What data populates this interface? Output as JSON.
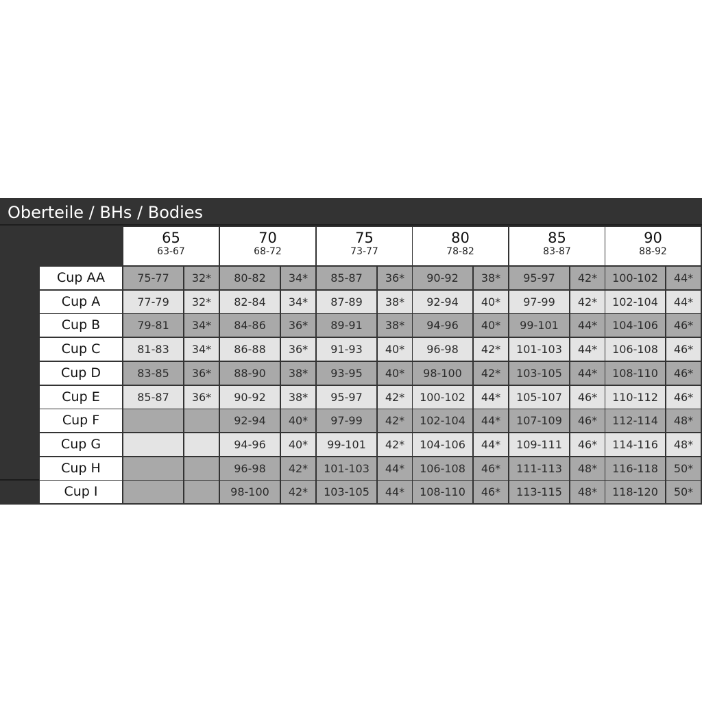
{
  "title": "Oberteile / BHs / Bodies",
  "colors": {
    "frame": "#333333",
    "row_dark": "#a9a9a9",
    "row_light": "#e4e4e4"
  },
  "bands": [
    {
      "band": "65",
      "range": "63-67"
    },
    {
      "band": "70",
      "range": "68-72"
    },
    {
      "band": "75",
      "range": "73-77"
    },
    {
      "band": "80",
      "range": "78-82"
    },
    {
      "band": "85",
      "range": "83-87"
    },
    {
      "band": "90",
      "range": "88-92"
    }
  ],
  "rows": [
    {
      "cup": "Cup AA",
      "shade": "dark",
      "cells": [
        [
          "75-77",
          "32*"
        ],
        [
          "80-82",
          "34*"
        ],
        [
          "85-87",
          "36*"
        ],
        [
          "90-92",
          "38*"
        ],
        [
          "95-97",
          "42*"
        ],
        [
          "100-102",
          "44*"
        ]
      ]
    },
    {
      "cup": "Cup A",
      "shade": "light",
      "cells": [
        [
          "77-79",
          "32*"
        ],
        [
          "82-84",
          "34*"
        ],
        [
          "87-89",
          "38*"
        ],
        [
          "92-94",
          "40*"
        ],
        [
          "97-99",
          "42*"
        ],
        [
          "102-104",
          "44*"
        ]
      ]
    },
    {
      "cup": "Cup B",
      "shade": "dark",
      "cells": [
        [
          "79-81",
          "34*"
        ],
        [
          "84-86",
          "36*"
        ],
        [
          "89-91",
          "38*"
        ],
        [
          "94-96",
          "40*"
        ],
        [
          "99-101",
          "44*"
        ],
        [
          "104-106",
          "46*"
        ]
      ]
    },
    {
      "cup": "Cup C",
      "shade": "light",
      "cells": [
        [
          "81-83",
          "34*"
        ],
        [
          "86-88",
          "36*"
        ],
        [
          "91-93",
          "40*"
        ],
        [
          "96-98",
          "42*"
        ],
        [
          "101-103",
          "44*"
        ],
        [
          "106-108",
          "46*"
        ]
      ]
    },
    {
      "cup": "Cup D",
      "shade": "dark",
      "cells": [
        [
          "83-85",
          "36*"
        ],
        [
          "88-90",
          "38*"
        ],
        [
          "93-95",
          "40*"
        ],
        [
          "98-100",
          "42*"
        ],
        [
          "103-105",
          "44*"
        ],
        [
          "108-110",
          "46*"
        ]
      ]
    },
    {
      "cup": "Cup E",
      "shade": "light",
      "cells": [
        [
          "85-87",
          "36*"
        ],
        [
          "90-92",
          "38*"
        ],
        [
          "95-97",
          "42*"
        ],
        [
          "100-102",
          "44*"
        ],
        [
          "105-107",
          "46*"
        ],
        [
          "110-112",
          "46*"
        ]
      ]
    },
    {
      "cup": "Cup F",
      "shade": "dark",
      "cells": [
        [
          "",
          ""
        ],
        [
          "92-94",
          "40*"
        ],
        [
          "97-99",
          "42*"
        ],
        [
          "102-104",
          "44*"
        ],
        [
          "107-109",
          "46*"
        ],
        [
          "112-114",
          "48*"
        ]
      ]
    },
    {
      "cup": "Cup G",
      "shade": "light",
      "cells": [
        [
          "",
          ""
        ],
        [
          "94-96",
          "40*"
        ],
        [
          "99-101",
          "42*"
        ],
        [
          "104-106",
          "44*"
        ],
        [
          "109-111",
          "46*"
        ],
        [
          "114-116",
          "48*"
        ]
      ]
    },
    {
      "cup": "Cup H",
      "shade": "dark",
      "cells": [
        [
          "",
          ""
        ],
        [
          "96-98",
          "42*"
        ],
        [
          "101-103",
          "44*"
        ],
        [
          "106-108",
          "46*"
        ],
        [
          "111-113",
          "48*"
        ],
        [
          "116-118",
          "50*"
        ]
      ]
    },
    {
      "cup": "Cup I",
      "shade": "dark",
      "cells": [
        [
          "",
          ""
        ],
        [
          "98-100",
          "42*"
        ],
        [
          "103-105",
          "44*"
        ],
        [
          "108-110",
          "46*"
        ],
        [
          "113-115",
          "48*"
        ],
        [
          "118-120",
          "50*"
        ]
      ]
    }
  ]
}
